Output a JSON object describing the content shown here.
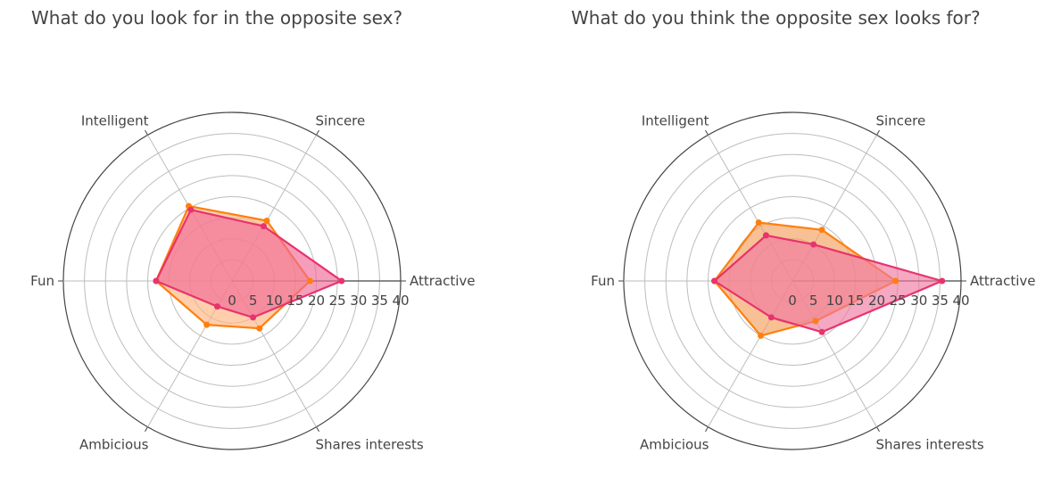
{
  "chart_data": [
    {
      "type": "radar",
      "title": "What do you look for in the opposite sex?",
      "axes": [
        "Attractive",
        "Sincere",
        "Intelligent",
        "Fun",
        "Ambicious",
        "Shares interests"
      ],
      "range": [
        0,
        40
      ],
      "ticks": [
        "0",
        "5",
        "10",
        "15",
        "20",
        "25",
        "30",
        "35",
        "40"
      ],
      "series": [
        {
          "color": "#ff7f0e",
          "fill": "#ffb380",
          "values": [
            18.5,
            16.5,
            20.5,
            18,
            12,
            13
          ]
        },
        {
          "color": "#e8336d",
          "fill": "#f06a96",
          "values": [
            26,
            15,
            19.5,
            18,
            7,
            10
          ]
        }
      ]
    },
    {
      "type": "radar",
      "title": "What do you think the opposite sex looks for?",
      "axes": [
        "Attractive",
        "Sincere",
        "Intelligent",
        "Fun",
        "Ambicious",
        "Shares interests"
      ],
      "range": [
        0,
        40
      ],
      "ticks": [
        "0",
        "5",
        "10",
        "15",
        "20",
        "25",
        "30",
        "35",
        "40"
      ],
      "series": [
        {
          "color": "#ff7f0e",
          "fill": "#f5a05c",
          "values": [
            24.5,
            14,
            16,
            18.5,
            15,
            11
          ]
        },
        {
          "color": "#e8336d",
          "fill": "#f07aa0",
          "values": [
            35.5,
            10,
            12.5,
            18.5,
            10,
            14
          ]
        }
      ]
    }
  ]
}
